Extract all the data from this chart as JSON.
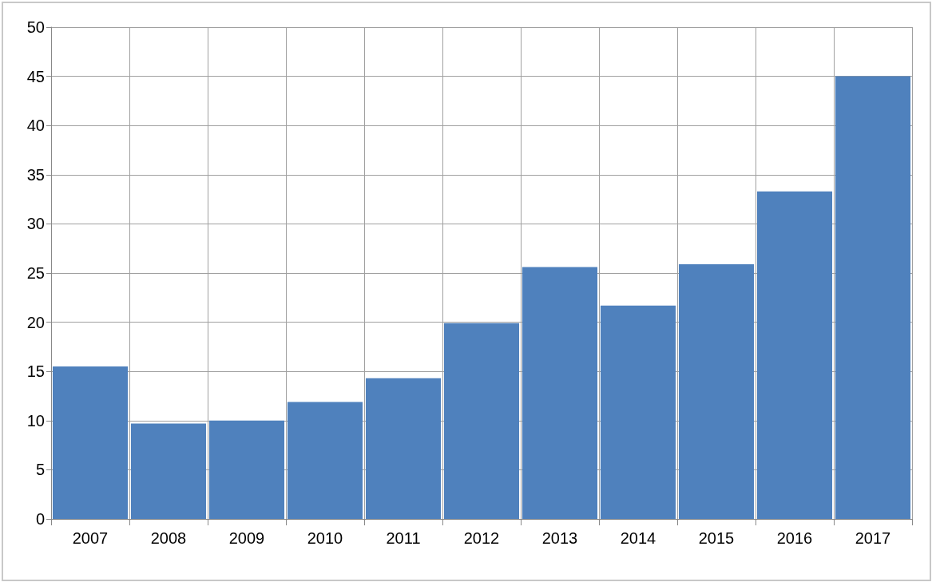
{
  "chart_data": {
    "type": "bar",
    "categories": [
      "2007",
      "2008",
      "2009",
      "2010",
      "2011",
      "2012",
      "2013",
      "2014",
      "2015",
      "2016",
      "2017"
    ],
    "values": [
      15.5,
      9.7,
      10.0,
      11.9,
      14.3,
      19.9,
      25.6,
      21.7,
      25.9,
      33.3,
      45.0
    ],
    "color": "#4f81bd",
    "ylim": [
      0,
      50
    ],
    "yticks": [
      0,
      5,
      10,
      15,
      20,
      25,
      30,
      35,
      40,
      45,
      50
    ],
    "grid": true
  }
}
